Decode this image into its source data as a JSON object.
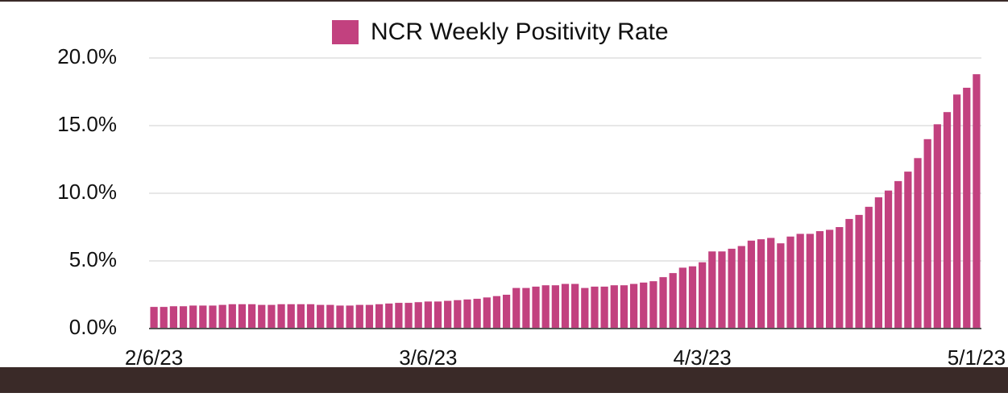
{
  "chart_data": {
    "type": "bar",
    "categories": [
      "2/6/23",
      null,
      null,
      null,
      null,
      null,
      null,
      null,
      null,
      null,
      null,
      null,
      null,
      null,
      null,
      null,
      null,
      null,
      null,
      null,
      null,
      null,
      null,
      null,
      null,
      null,
      null,
      null,
      "3/6/23",
      null,
      null,
      null,
      null,
      null,
      null,
      null,
      null,
      null,
      null,
      null,
      null,
      null,
      null,
      null,
      null,
      null,
      null,
      null,
      null,
      null,
      null,
      null,
      null,
      null,
      null,
      null,
      "4/3/23",
      null,
      null,
      null,
      null,
      null,
      null,
      null,
      null,
      null,
      null,
      null,
      null,
      null,
      null,
      null,
      null,
      null,
      null,
      null,
      null,
      null,
      null,
      null,
      null,
      null,
      null,
      null,
      "5/1/23"
    ],
    "series": [
      {
        "name": "NCR Weekly Positivity Rate",
        "color": "#c2417f",
        "values": [
          1.6,
          1.6,
          1.65,
          1.65,
          1.7,
          1.7,
          1.7,
          1.75,
          1.8,
          1.8,
          1.8,
          1.75,
          1.75,
          1.8,
          1.8,
          1.8,
          1.8,
          1.75,
          1.75,
          1.7,
          1.7,
          1.75,
          1.75,
          1.8,
          1.85,
          1.9,
          1.9,
          1.95,
          2.0,
          2.0,
          2.05,
          2.1,
          2.15,
          2.2,
          2.3,
          2.4,
          2.5,
          3.0,
          3.0,
          3.1,
          3.2,
          3.2,
          3.3,
          3.3,
          3.0,
          3.1,
          3.1,
          3.2,
          3.2,
          3.3,
          3.4,
          3.5,
          3.8,
          4.1,
          4.5,
          4.6,
          4.9,
          5.7,
          5.7,
          5.9,
          6.1,
          6.5,
          6.6,
          6.7,
          6.3,
          6.8,
          7.0,
          7.0,
          7.2,
          7.3,
          7.5,
          8.1,
          8.4,
          9.0,
          9.7,
          10.2,
          10.9,
          11.6,
          12.6,
          14.0,
          15.1,
          16.0,
          17.3,
          17.8,
          18.8
        ]
      }
    ],
    "ylim": [
      0,
      20
    ],
    "yticks": [
      {
        "value": 0,
        "label": "0.0%"
      },
      {
        "value": 5,
        "label": "5.0%"
      },
      {
        "value": 10,
        "label": "10.0%"
      },
      {
        "value": 15,
        "label": "15.0%"
      },
      {
        "value": 20,
        "label": "20.0%"
      }
    ],
    "grid": true,
    "legend": "top"
  }
}
